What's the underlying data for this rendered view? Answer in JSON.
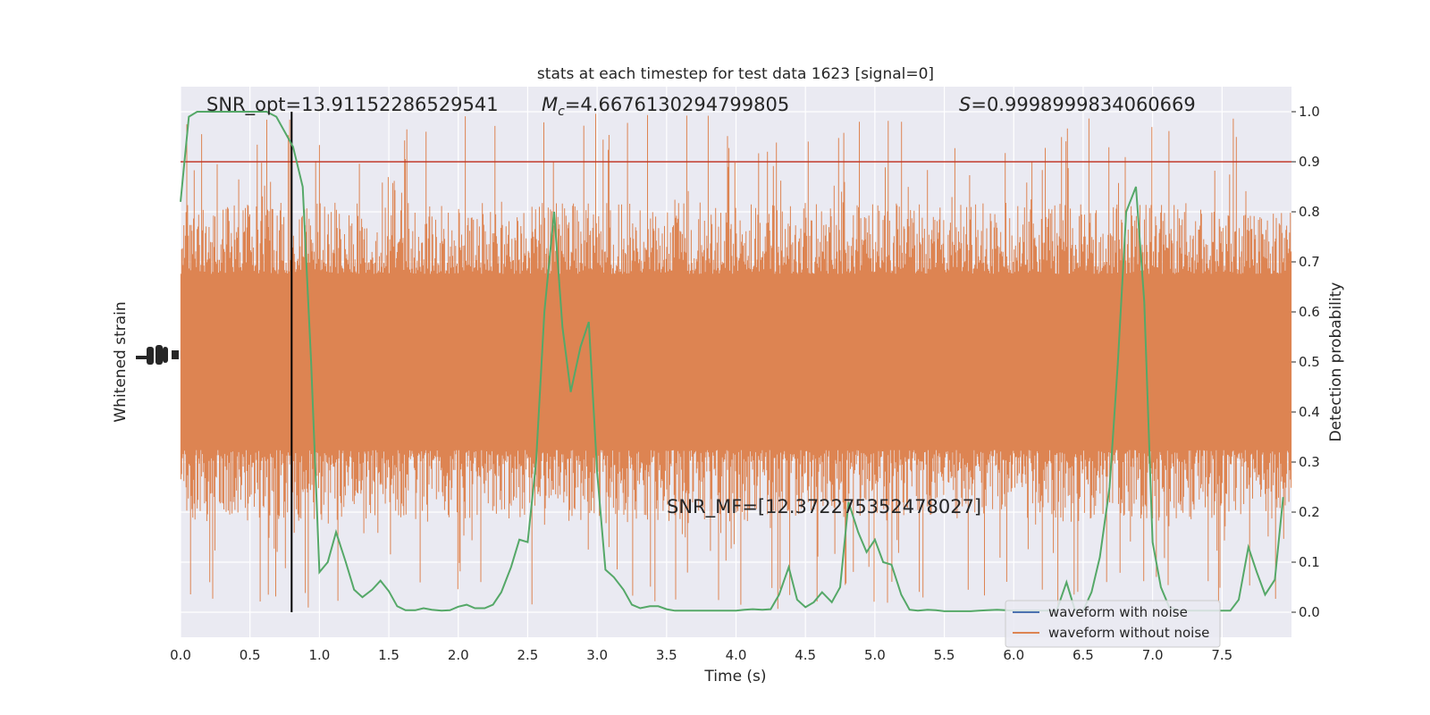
{
  "chart_data": {
    "type": "line",
    "title": "stats at each timestep for test data 1623 [signal=0]",
    "xlabel": "Time (s)",
    "ylabel_left": "Whitened strain",
    "ylabel_right": "Detection probability",
    "xlim": [
      0.0,
      8.0
    ],
    "ylim_right": [
      -0.05,
      1.05
    ],
    "x_ticks": [
      "0.0",
      "0.5",
      "1.0",
      "1.5",
      "2.0",
      "2.5",
      "3.0",
      "3.5",
      "4.0",
      "4.5",
      "5.0",
      "5.5",
      "6.0",
      "6.5",
      "7.0",
      "7.5"
    ],
    "x_tick_values": [
      0.0,
      0.5,
      1.0,
      1.5,
      2.0,
      2.5,
      3.0,
      3.5,
      4.0,
      4.5,
      5.0,
      5.5,
      6.0,
      6.5,
      7.0,
      7.5
    ],
    "right_ticks": [
      "0.0",
      "0.1",
      "0.2",
      "0.3",
      "0.4",
      "0.5",
      "0.6",
      "0.7",
      "0.8",
      "0.9",
      "1.0"
    ],
    "right_tick_values": [
      0.0,
      0.1,
      0.2,
      0.3,
      0.4,
      0.5,
      0.6,
      0.7,
      0.8,
      0.9,
      1.0
    ],
    "grid": true,
    "annotations": {
      "snr_opt": "SNR_opt=13.91152286529541",
      "mc_label": "M",
      "mc_sub": "c",
      "mc_value": "=4.6676130294799805",
      "s_label": "S",
      "s_value": "=0.9998999834060669",
      "snr_mf": "SNR_MF=[12.372275352478027]"
    },
    "threshold": {
      "value": 0.9,
      "color": "#c0392b"
    },
    "marker_time": 0.8,
    "legend": {
      "placement": "bottom-right",
      "entries": [
        {
          "label": "waveform with noise",
          "color": "#4c72b0"
        },
        {
          "label": "waveform without noise",
          "color": "#dd8452"
        }
      ]
    },
    "series": [
      {
        "name": "waveform without noise",
        "color": "#dd8452",
        "kind": "strain",
        "band_center": 0.5,
        "band_half_width": 0.32,
        "peak_max": 1.0,
        "peak_min": 0.0
      },
      {
        "name": "detection probability",
        "color": "#55a868",
        "x": [
          0.0,
          0.06,
          0.12,
          0.19,
          0.25,
          0.31,
          0.38,
          0.44,
          0.5,
          0.56,
          0.62,
          0.69,
          0.75,
          0.81,
          0.88,
          0.94,
          1.0,
          1.06,
          1.12,
          1.19,
          1.25,
          1.31,
          1.38,
          1.44,
          1.5,
          1.56,
          1.62,
          1.69,
          1.75,
          1.81,
          1.88,
          1.94,
          2.0,
          2.06,
          2.12,
          2.19,
          2.25,
          2.31,
          2.38,
          2.44,
          2.5,
          2.56,
          2.62,
          2.69,
          2.75,
          2.81,
          2.88,
          2.94,
          3.0,
          3.06,
          3.12,
          3.19,
          3.25,
          3.31,
          3.38,
          3.44,
          3.5,
          3.56,
          3.62,
          3.69,
          3.75,
          3.81,
          3.88,
          3.94,
          4.0,
          4.06,
          4.12,
          4.19,
          4.25,
          4.31,
          4.38,
          4.44,
          4.5,
          4.56,
          4.62,
          4.69,
          4.75,
          4.81,
          4.88,
          4.94,
          5.0,
          5.06,
          5.12,
          5.19,
          5.25,
          5.31,
          5.38,
          5.44,
          5.5,
          5.56,
          5.62,
          5.69,
          5.75,
          5.81,
          5.88,
          5.94,
          6.0,
          6.06,
          6.12,
          6.19,
          6.25,
          6.31,
          6.38,
          6.44,
          6.5,
          6.56,
          6.62,
          6.69,
          6.75,
          6.81,
          6.88,
          6.94,
          7.0,
          7.06,
          7.12,
          7.19,
          7.25,
          7.31,
          7.38,
          7.44,
          7.5,
          7.56,
          7.62,
          7.69,
          7.75,
          7.81,
          7.88,
          7.94
        ],
        "values": [
          0.82,
          0.99,
          1.0,
          1.0,
          1.0,
          1.0,
          1.0,
          1.0,
          1.0,
          1.0,
          1.0,
          0.99,
          0.96,
          0.93,
          0.85,
          0.5,
          0.08,
          0.1,
          0.16,
          0.1,
          0.045,
          0.03,
          0.045,
          0.063,
          0.042,
          0.012,
          0.004,
          0.004,
          0.008,
          0.005,
          0.003,
          0.004,
          0.011,
          0.015,
          0.008,
          0.008,
          0.015,
          0.04,
          0.09,
          0.145,
          0.14,
          0.3,
          0.6,
          0.8,
          0.57,
          0.44,
          0.53,
          0.58,
          0.28,
          0.085,
          0.07,
          0.045,
          0.015,
          0.008,
          0.012,
          0.012,
          0.006,
          0.003,
          0.003,
          0.003,
          0.003,
          0.003,
          0.003,
          0.003,
          0.003,
          0.005,
          0.006,
          0.005,
          0.006,
          0.035,
          0.09,
          0.025,
          0.01,
          0.02,
          0.04,
          0.02,
          0.05,
          0.22,
          0.16,
          0.12,
          0.145,
          0.1,
          0.095,
          0.035,
          0.005,
          0.003,
          0.005,
          0.004,
          0.002,
          0.002,
          0.002,
          0.002,
          0.003,
          0.004,
          0.005,
          0.004,
          0.003,
          0.003,
          0.003,
          0.003,
          0.003,
          0.004,
          0.06,
          0.005,
          0.003,
          0.04,
          0.11,
          0.25,
          0.5,
          0.8,
          0.85,
          0.62,
          0.14,
          0.05,
          0.01,
          0.003,
          0.003,
          0.003,
          0.003,
          0.003,
          0.003,
          0.003,
          0.025,
          0.13,
          0.08,
          0.035,
          0.065,
          0.23
        ]
      }
    ]
  }
}
